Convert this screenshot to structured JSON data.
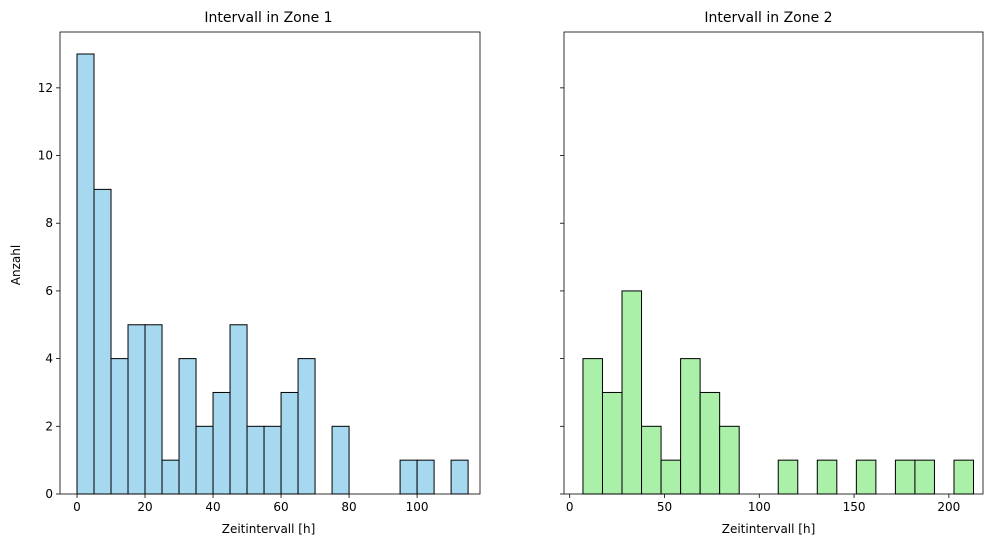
{
  "chart_data": [
    {
      "type": "bar",
      "title": "Intervall in Zone 1",
      "xlabel": "Zeitintervall [h]",
      "ylabel": "Anzahl",
      "xlim": [
        -5,
        118.5
      ],
      "ylim": [
        0,
        13.65
      ],
      "xticks": [
        0,
        20,
        40,
        60,
        80,
        100
      ],
      "yticks": [
        0,
        2,
        4,
        6,
        8,
        10,
        12
      ],
      "bin_width": 5,
      "color": "#a6d8ef",
      "edgecolor": "#000000",
      "bins": [
        {
          "start": 0,
          "end": 5,
          "value": 13
        },
        {
          "start": 5,
          "end": 10,
          "value": 9
        },
        {
          "start": 10,
          "end": 15,
          "value": 4
        },
        {
          "start": 15,
          "end": 20,
          "value": 5
        },
        {
          "start": 20,
          "end": 25,
          "value": 5
        },
        {
          "start": 25,
          "end": 30,
          "value": 1
        },
        {
          "start": 30,
          "end": 35,
          "value": 4
        },
        {
          "start": 35,
          "end": 40,
          "value": 2
        },
        {
          "start": 40,
          "end": 45,
          "value": 3
        },
        {
          "start": 45,
          "end": 50,
          "value": 5
        },
        {
          "start": 50,
          "end": 55,
          "value": 2
        },
        {
          "start": 55,
          "end": 60,
          "value": 2
        },
        {
          "start": 60,
          "end": 65,
          "value": 3
        },
        {
          "start": 65,
          "end": 70,
          "value": 4
        },
        {
          "start": 70,
          "end": 75,
          "value": 0
        },
        {
          "start": 75,
          "end": 80,
          "value": 2
        },
        {
          "start": 80,
          "end": 85,
          "value": 0
        },
        {
          "start": 85,
          "end": 90,
          "value": 0
        },
        {
          "start": 90,
          "end": 95,
          "value": 0
        },
        {
          "start": 95,
          "end": 100,
          "value": 1
        },
        {
          "start": 100,
          "end": 105,
          "value": 1
        },
        {
          "start": 105,
          "end": 110,
          "value": 0
        },
        {
          "start": 110,
          "end": 115,
          "value": 1
        }
      ]
    },
    {
      "type": "bar",
      "title": "Intervall in Zone 2",
      "xlabel": "Zeitintervall [h]",
      "ylabel": "",
      "xlim": [
        -3,
        218
      ],
      "ylim": [
        0,
        13.65
      ],
      "xticks": [
        0,
        50,
        100,
        150,
        200
      ],
      "yticks": [
        0,
        2,
        4,
        6,
        8,
        10,
        12
      ],
      "bin_width": 10.3,
      "color": "#aaf0a8",
      "edgecolor": "#000000",
      "bins": [
        {
          "start": 7.0,
          "end": 17.3,
          "value": 4
        },
        {
          "start": 17.3,
          "end": 27.6,
          "value": 3
        },
        {
          "start": 27.6,
          "end": 37.9,
          "value": 6
        },
        {
          "start": 37.9,
          "end": 48.2,
          "value": 2
        },
        {
          "start": 48.2,
          "end": 58.5,
          "value": 1
        },
        {
          "start": 58.5,
          "end": 68.8,
          "value": 4
        },
        {
          "start": 68.8,
          "end": 79.1,
          "value": 3
        },
        {
          "start": 79.1,
          "end": 89.4,
          "value": 2
        },
        {
          "start": 89.4,
          "end": 99.7,
          "value": 0
        },
        {
          "start": 99.7,
          "end": 110.0,
          "value": 0
        },
        {
          "start": 110.0,
          "end": 120.3,
          "value": 1
        },
        {
          "start": 120.3,
          "end": 130.6,
          "value": 0
        },
        {
          "start": 130.6,
          "end": 140.9,
          "value": 1
        },
        {
          "start": 140.9,
          "end": 151.2,
          "value": 0
        },
        {
          "start": 151.2,
          "end": 161.5,
          "value": 1
        },
        {
          "start": 161.5,
          "end": 171.8,
          "value": 0
        },
        {
          "start": 171.8,
          "end": 182.1,
          "value": 1
        },
        {
          "start": 182.1,
          "end": 192.4,
          "value": 1
        },
        {
          "start": 192.4,
          "end": 202.7,
          "value": 0
        },
        {
          "start": 202.7,
          "end": 213.0,
          "value": 1
        }
      ]
    }
  ]
}
